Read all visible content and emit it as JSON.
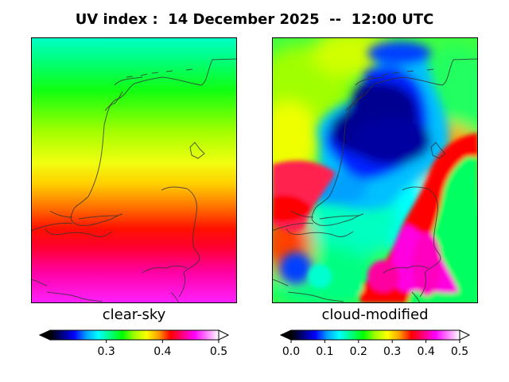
{
  "title": "UV index :  14 December 2025  --  12:00 UTC",
  "panels": [
    {
      "caption": "clear-sky",
      "colorbar": {
        "min": 0.2,
        "max": 0.5,
        "ticks": [
          "0.3",
          "0.4",
          "0.5"
        ],
        "tick_values": [
          0.3,
          0.4,
          0.5
        ],
        "extend": "both"
      }
    },
    {
      "caption": "cloud-modified",
      "colorbar": {
        "min": 0.0,
        "max": 0.5,
        "ticks": [
          "0.0",
          "0.1",
          "0.2",
          "0.3",
          "0.4",
          "0.5"
        ],
        "tick_values": [
          0.0,
          0.1,
          0.2,
          0.3,
          0.4,
          0.5
        ],
        "extend": "both"
      }
    }
  ],
  "colormap": [
    "#000000",
    "#000080",
    "#0000ff",
    "#00a0ff",
    "#00ffff",
    "#00ff80",
    "#00ff00",
    "#a0ff00",
    "#ffff00",
    "#ffa000",
    "#ff0000",
    "#ff0080",
    "#ff00ff",
    "#ff80ff",
    "#ffffff"
  ]
}
